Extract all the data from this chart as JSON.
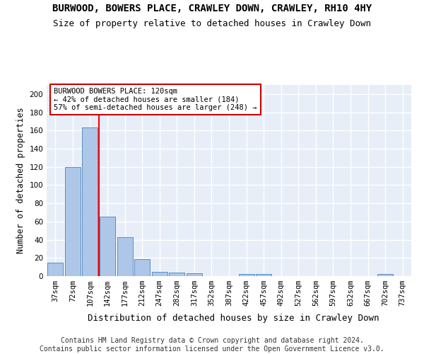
{
  "title": "BURWOOD, BOWERS PLACE, CRAWLEY DOWN, CRAWLEY, RH10 4HY",
  "subtitle": "Size of property relative to detached houses in Crawley Down",
  "xlabel": "Distribution of detached houses by size in Crawley Down",
  "ylabel": "Number of detached properties",
  "bin_labels": [
    "37sqm",
    "72sqm",
    "107sqm",
    "142sqm",
    "177sqm",
    "212sqm",
    "247sqm",
    "282sqm",
    "317sqm",
    "352sqm",
    "387sqm",
    "422sqm",
    "457sqm",
    "492sqm",
    "527sqm",
    "562sqm",
    "597sqm",
    "632sqm",
    "667sqm",
    "702sqm",
    "737sqm"
  ],
  "bar_values": [
    15,
    120,
    163,
    65,
    43,
    19,
    5,
    4,
    3,
    0,
    0,
    2,
    2,
    0,
    0,
    0,
    0,
    0,
    0,
    2,
    0
  ],
  "bar_color": "#aec6e8",
  "bar_edge_color": "#5a8fc2",
  "background_color": "#e8eef8",
  "grid_color": "#ffffff",
  "annotation_text": "BURWOOD BOWERS PLACE: 120sqm\n← 42% of detached houses are smaller (184)\n57% of semi-detached houses are larger (248) →",
  "annotation_box_color": "#ffffff",
  "annotation_box_edge": "#cc0000",
  "red_line_x": 2.5,
  "ylim": [
    0,
    210
  ],
  "yticks": [
    0,
    20,
    40,
    60,
    80,
    100,
    120,
    140,
    160,
    180,
    200
  ],
  "footer_text": "Contains HM Land Registry data © Crown copyright and database right 2024.\nContains public sector information licensed under the Open Government Licence v3.0.",
  "title_fontsize": 10,
  "subtitle_fontsize": 9,
  "xlabel_fontsize": 9,
  "ylabel_fontsize": 8.5,
  "tick_fontsize": 7.5,
  "annotation_fontsize": 7.5,
  "footer_fontsize": 7
}
